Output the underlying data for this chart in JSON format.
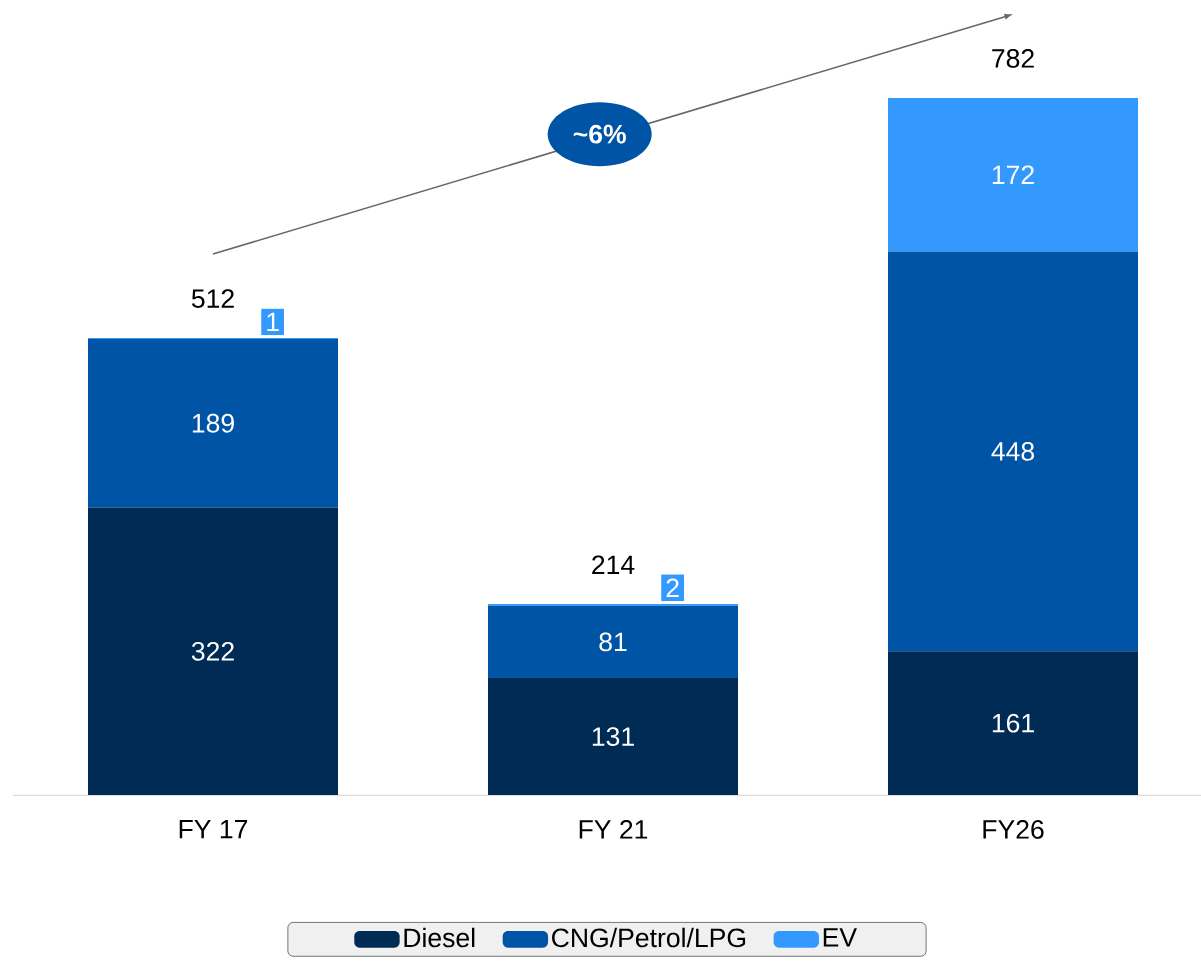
{
  "chart_data": {
    "type": "bar",
    "stacked": true,
    "categories": [
      "FY 17",
      "FY 21",
      "FY26"
    ],
    "series": [
      {
        "name": "Diesel",
        "color": "#002b55",
        "values": [
          322,
          131,
          161
        ]
      },
      {
        "name": "CNG/Petrol/LPG",
        "color": "#0054a6",
        "values": [
          189,
          81,
          448
        ]
      },
      {
        "name": "EV",
        "color": "#3399ff",
        "values": [
          1,
          2,
          172
        ]
      }
    ],
    "data_labels": true,
    "totals": [
      "512",
      "214",
      "782"
    ],
    "annotations": [
      "~6%"
    ],
    "legend": "bottom"
  }
}
